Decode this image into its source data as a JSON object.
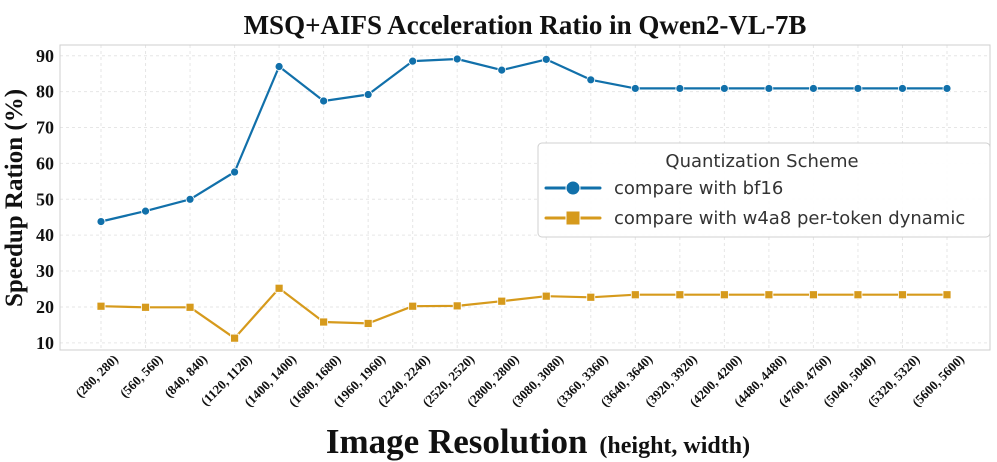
{
  "chart_data": {
    "type": "line",
    "title": "MSQ+AIFS  Acceleration Ratio in Qwen2-VL-7B",
    "xlabel": "Image Resolution",
    "xlabel_suffix": "(height, width)",
    "ylabel": "Speedup Ration (%)",
    "ylim": [
      8,
      93
    ],
    "yticks": [
      10,
      20,
      30,
      40,
      50,
      60,
      70,
      80,
      90
    ],
    "categories": [
      "(280, 280)",
      "(560, 560)",
      "(840, 840)",
      "(1120, 1120)",
      "(1400, 1400)",
      "(1680, 1680)",
      "(1960, 1960)",
      "(2240, 2240)",
      "(2520, 2520)",
      "(2800, 2800)",
      "(3080, 3080)",
      "(3360, 3360)",
      "(3640, 3640)",
      "(3920, 3920)",
      "(4200, 4200)",
      "(4480, 4480)",
      "(4760, 4760)",
      "(5040, 5040)",
      "(5320, 5320)",
      "(5600, 5600)"
    ],
    "series": [
      {
        "name": "compare with bf16",
        "color": "#1170aa",
        "marker": "circle",
        "values": [
          43.8,
          46.7,
          50.0,
          57.6,
          87.0,
          77.4,
          79.2,
          88.5,
          89.1,
          86.0,
          89.0,
          83.3,
          80.9,
          80.9,
          80.9,
          80.9,
          80.9,
          80.9,
          80.9,
          80.9
        ]
      },
      {
        "name": "compare with w4a8 per-token dynamic",
        "color": "#d69a1c",
        "marker": "square",
        "values": [
          20.2,
          19.9,
          19.9,
          11.3,
          25.2,
          15.8,
          15.4,
          20.2,
          20.3,
          21.6,
          23.0,
          22.7,
          23.4,
          23.4,
          23.4,
          23.4,
          23.4,
          23.4,
          23.4,
          23.4
        ]
      }
    ],
    "legend_title": "Quantization Scheme",
    "legend_position": "right",
    "grid": true
  }
}
